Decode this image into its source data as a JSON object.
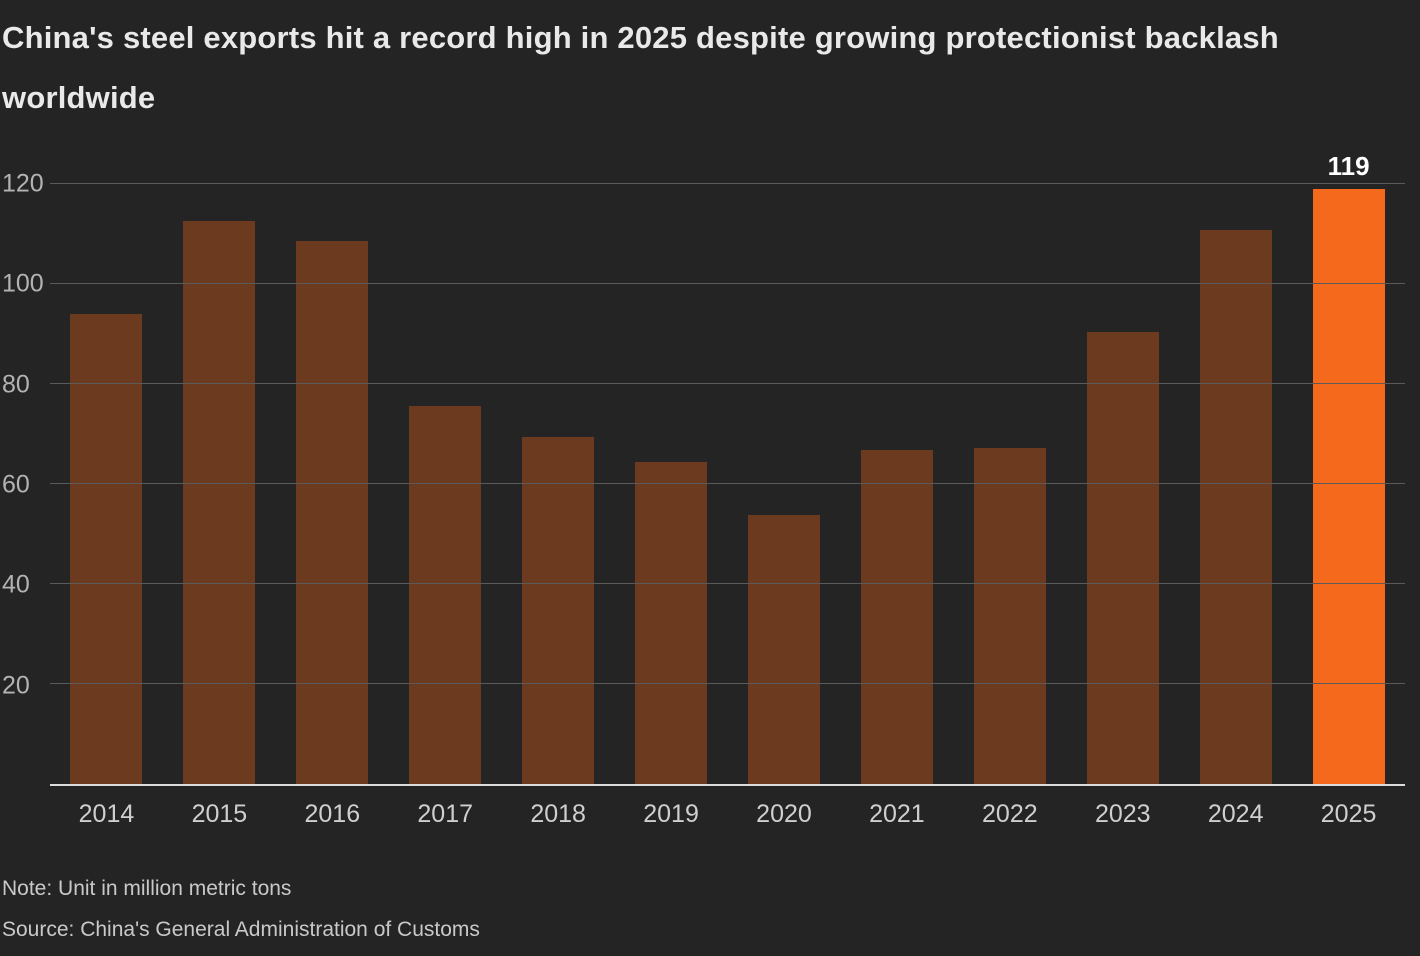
{
  "title": "China's steel exports hit a record high in 2025 despite growing protectionist backlash worldwide",
  "note": "Note: Unit in million metric tons",
  "source": "Source: China's General Administration of Customs",
  "colors": {
    "background": "#242424",
    "bar": "#6b3a1f",
    "highlight": "#f5691c",
    "grid": "#5a5a5a",
    "baseline": "#dcdcdc",
    "axis_text": "#b3b3b3",
    "xaxis_text": "#cfcfcf",
    "title_text": "#e9e9e9",
    "data_label_text": "#ffffff"
  },
  "chart_data": {
    "type": "bar",
    "title": "China's steel exports hit a record high in 2025 despite growing protectionist backlash worldwide",
    "categories": [
      "2014",
      "2015",
      "2016",
      "2017",
      "2018",
      "2019",
      "2020",
      "2021",
      "2022",
      "2023",
      "2024",
      "2025"
    ],
    "values": [
      94,
      112.5,
      108.5,
      75.5,
      69.3,
      64.3,
      53.7,
      66.8,
      67.2,
      90.3,
      110.7,
      119
    ],
    "highlight_index": 11,
    "data_label": {
      "index": 11,
      "text": "119"
    },
    "xlabel": "",
    "ylabel": "Unit in million metric tons",
    "ylim": [
      0,
      120
    ],
    "yticks": [
      20,
      40,
      60,
      80,
      100,
      120
    ],
    "grid": "horizontal",
    "legend": "none"
  }
}
